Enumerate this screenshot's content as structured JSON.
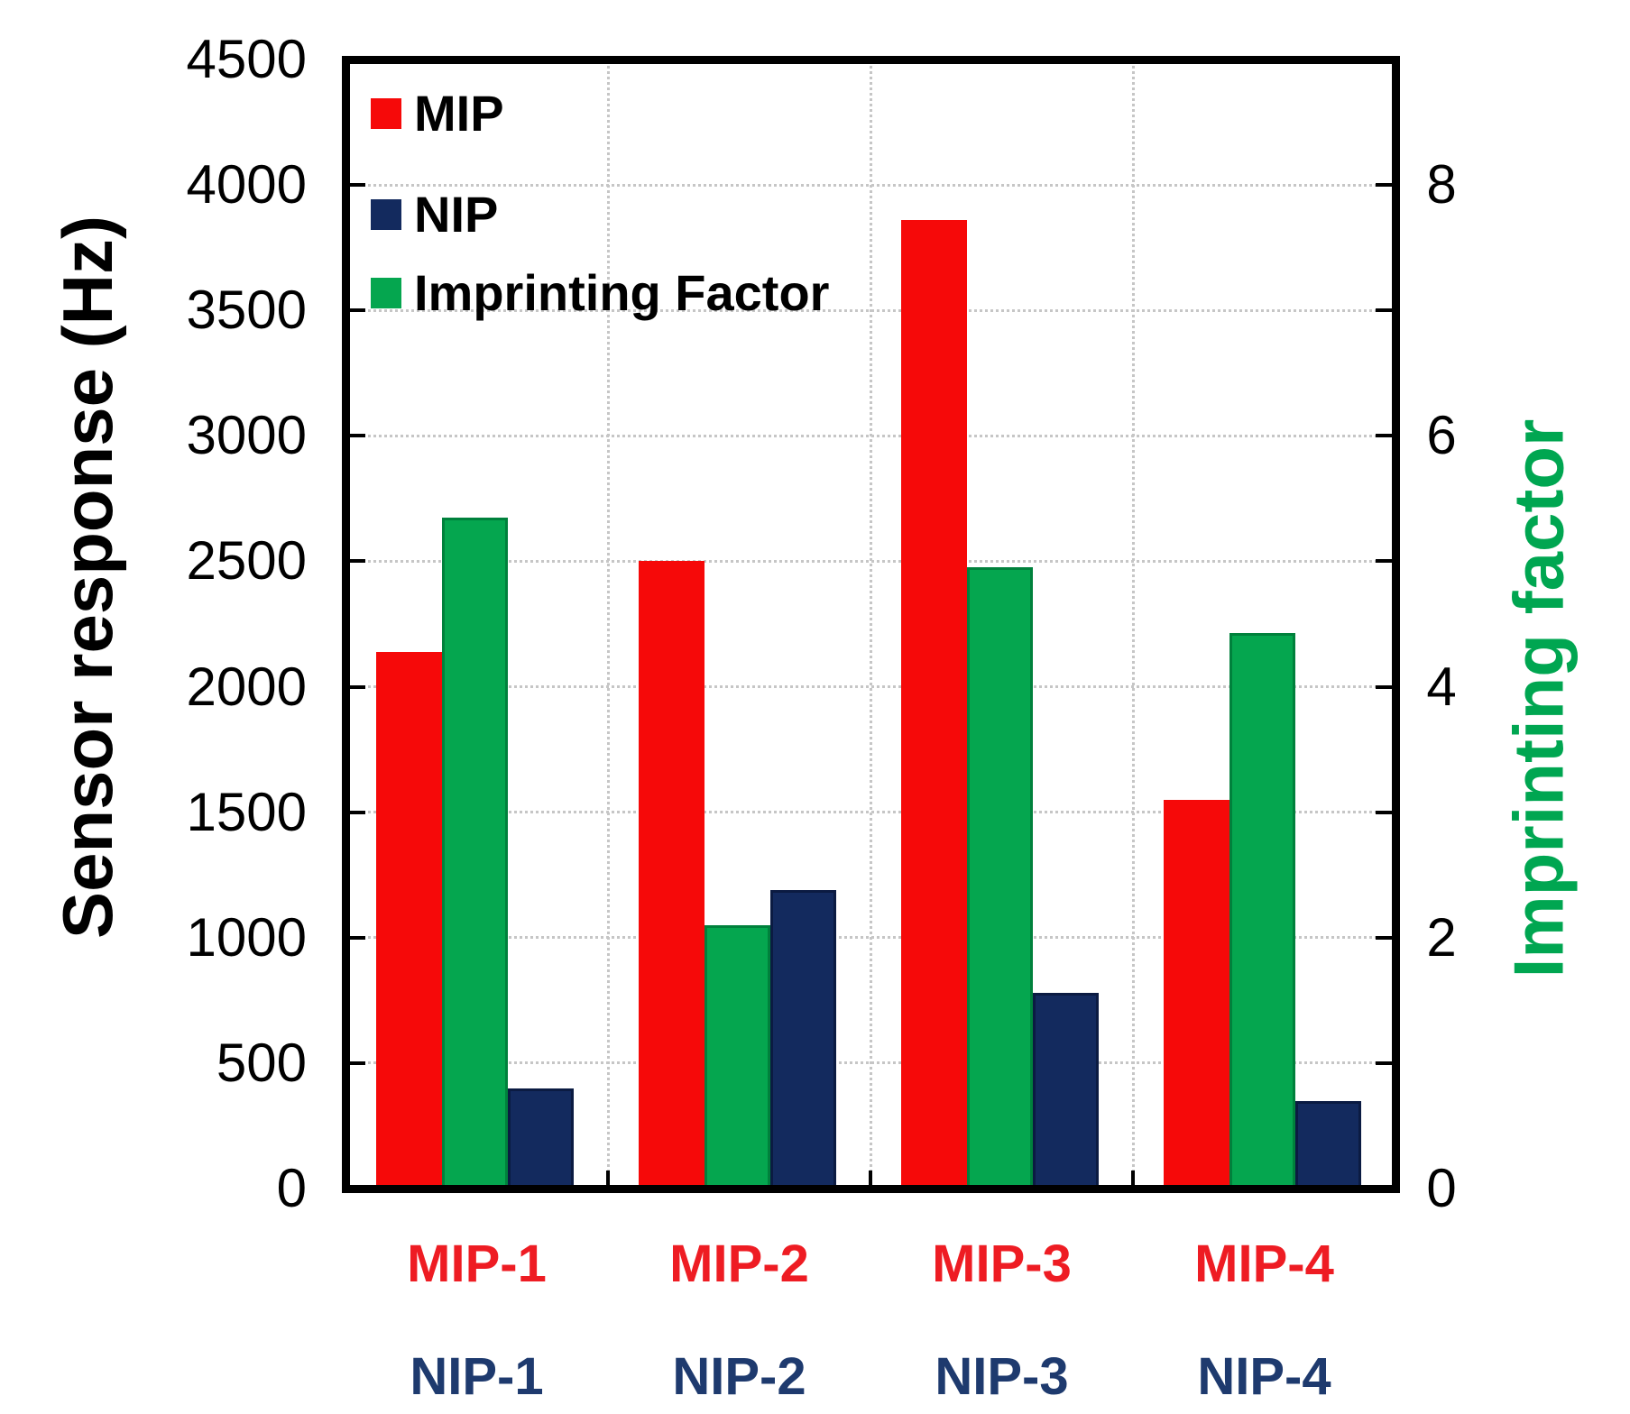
{
  "chart_data": {
    "type": "bar",
    "title": "",
    "categories": [
      "MIP-1",
      "MIP-2",
      "MIP-3",
      "MIP-4"
    ],
    "categories_row2": [
      "NIP-1",
      "NIP-2",
      "NIP-3",
      "NIP-4"
    ],
    "series": [
      {
        "name": "MIP",
        "axis": "left",
        "color": "#f60909",
        "border": "#f60909",
        "values": [
          2140,
          2500,
          3860,
          1550
        ]
      },
      {
        "name": "Imprinting Factor",
        "axis": "right",
        "color": "#05a64f",
        "border": "#00813c",
        "values": [
          5.35,
          2.1,
          4.95,
          4.43
        ]
      },
      {
        "name": "NIP",
        "axis": "left",
        "color": "#132a5e",
        "border": "#0b1b42",
        "values": [
          400,
          1190,
          780,
          350
        ]
      }
    ],
    "left_axis": {
      "label": "Sensor response (Hz)",
      "min": 0,
      "max": 4500,
      "tick_step": 500,
      "tick_labels": [
        "0",
        "500",
        "1000",
        "1500",
        "2000",
        "2500",
        "3000",
        "3500",
        "4000",
        "4500"
      ]
    },
    "right_axis": {
      "label": "Imprinting factor",
      "min": 0,
      "max": 9,
      "tick_values": [
        0,
        2,
        4,
        6,
        8
      ],
      "tick_labels": [
        "0",
        "2",
        "4",
        "6",
        "8"
      ],
      "minor_tick_values": [
        1,
        2,
        3,
        4,
        5,
        6,
        7,
        8
      ],
      "color": "#00a651"
    },
    "legend": [
      {
        "label": "MIP",
        "color": "#f60909"
      },
      {
        "label": "NIP",
        "color": "#132a5e"
      },
      {
        "label": "Imprinting Factor",
        "color": "#05a64f"
      }
    ],
    "x_label_colors": {
      "row1": "#ee1c23",
      "row2": "#1e3a6e"
    },
    "grid": true,
    "legend_position": "top-left-inside"
  }
}
